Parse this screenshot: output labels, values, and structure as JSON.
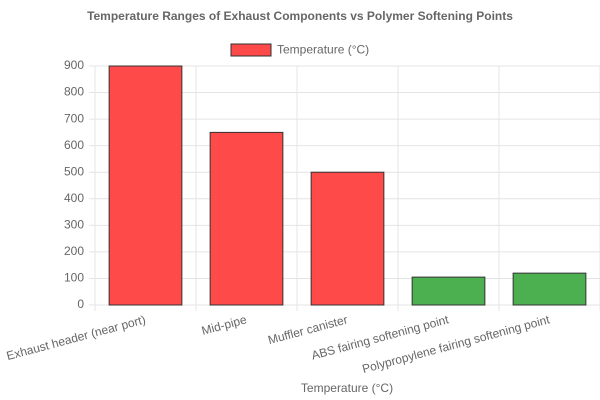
{
  "chart_data": {
    "type": "bar",
    "title": "Temperature Ranges of Exhaust Components vs Polymer Softening Points",
    "xlabel": "Temperature (°C)",
    "categories": [
      "Exhaust header (near port)",
      "Mid-pipe",
      "Muffler canister",
      "ABS fairing softening point",
      "Polypropylene fairing softening point"
    ],
    "series": [
      {
        "name": "Temperature (°C)",
        "color": "#ff4a4a",
        "colors": [
          "#ff4a4a",
          "#ff4a4a",
          "#ff4a4a",
          "#4caf50",
          "#4caf50"
        ],
        "values": [
          900,
          650,
          500,
          105,
          120
        ]
      }
    ],
    "ylim": [
      0,
      900
    ],
    "yticks": [
      0,
      100,
      200,
      300,
      400,
      500,
      600,
      700,
      800,
      900
    ],
    "grid": true
  }
}
